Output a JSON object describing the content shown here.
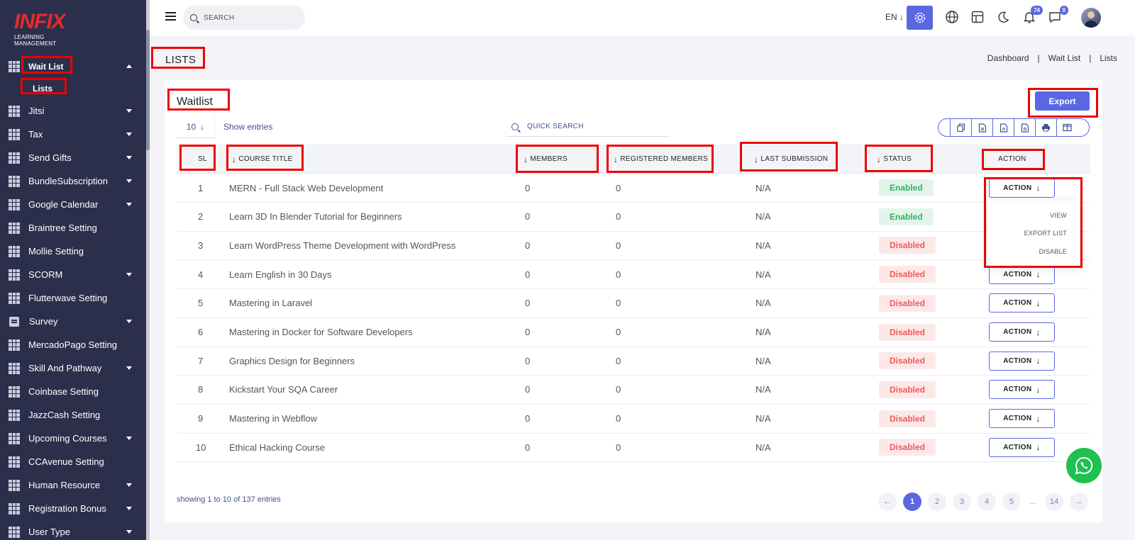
{
  "brand": {
    "logo_text": "INFIX",
    "logo_subtitle": "LEARNING MANAGEMENT"
  },
  "sidebar": {
    "items": [
      {
        "label": "Wait List",
        "expanded": true,
        "has_caret": true,
        "icon": "grid-icon"
      },
      {
        "label": "Jitsi",
        "has_caret": true,
        "icon": "grid-icon"
      },
      {
        "label": "Tax",
        "has_caret": true,
        "icon": "grid-icon"
      },
      {
        "label": "Send Gifts",
        "has_caret": true,
        "icon": "grid-icon"
      },
      {
        "label": "BundleSubscription",
        "has_caret": true,
        "icon": "grid-icon"
      },
      {
        "label": "Google Calendar",
        "has_caret": true,
        "icon": "grid-icon"
      },
      {
        "label": "Braintree Setting",
        "has_caret": false,
        "icon": "grid-icon"
      },
      {
        "label": "Mollie Setting",
        "has_caret": false,
        "icon": "grid-icon"
      },
      {
        "label": "SCORM",
        "has_caret": true,
        "icon": "grid-icon"
      },
      {
        "label": "Flutterwave Setting",
        "has_caret": false,
        "icon": "grid-icon"
      },
      {
        "label": "Survey",
        "has_caret": true,
        "icon": "survey-icon"
      },
      {
        "label": "MercadoPago Setting",
        "has_caret": false,
        "icon": "grid-icon"
      },
      {
        "label": "Skill And Pathway",
        "has_caret": true,
        "icon": "grid-icon"
      },
      {
        "label": "Coinbase Setting",
        "has_caret": false,
        "icon": "grid-icon"
      },
      {
        "label": "JazzCash Setting",
        "has_caret": false,
        "icon": "grid-icon"
      },
      {
        "label": "Upcoming Courses",
        "has_caret": true,
        "icon": "grid-icon"
      },
      {
        "label": "CCAvenue Setting",
        "has_caret": false,
        "icon": "grid-icon"
      },
      {
        "label": "Human Resource",
        "has_caret": true,
        "icon": "grid-icon"
      },
      {
        "label": "Registration Bonus",
        "has_caret": true,
        "icon": "grid-icon"
      },
      {
        "label": "User Type",
        "has_caret": true,
        "icon": "grid-icon"
      }
    ],
    "subitem": "Lists"
  },
  "topbar": {
    "search_placeholder": "SEARCH",
    "language": "EN",
    "notifications_count": "74",
    "messages_count": "0",
    "accent": "#5a67e2"
  },
  "header": {
    "page_title": "LISTS",
    "breadcrumbs": [
      "Dashboard",
      "Wait List",
      "Lists"
    ]
  },
  "card": {
    "title": "Waitlist",
    "export_label": "Export",
    "entries_value": "10",
    "entries_label": "Show entries",
    "quick_search_placeholder": "QUICK SEARCH",
    "tools": [
      "copy-icon",
      "excel-icon",
      "csv-icon",
      "pdf-icon",
      "print-icon",
      "columns-icon"
    ]
  },
  "table": {
    "columns": {
      "sl": "SL",
      "course_title": "COURSE TITLE",
      "members": "MEMBERS",
      "registered_members": "REGISTERED MEMBERS",
      "last_submission": "LAST SUBMISSION",
      "status": "STATUS",
      "action": "ACTION"
    },
    "rows": [
      {
        "sl": "1",
        "title": "MERN - Full Stack Web Development",
        "members": "0",
        "registered": "0",
        "last": "N/A",
        "status": "Enabled",
        "action": "ACTION"
      },
      {
        "sl": "2",
        "title": "Learn 3D In Blender Tutorial for Beginners",
        "members": "0",
        "registered": "0",
        "last": "N/A",
        "status": "Enabled",
        "action": "ACTION"
      },
      {
        "sl": "3",
        "title": "Learn WordPress Theme Development with WordPress",
        "members": "0",
        "registered": "0",
        "last": "N/A",
        "status": "Disabled",
        "action": "ACTION"
      },
      {
        "sl": "4",
        "title": "Learn English in 30 Days",
        "members": "0",
        "registered": "0",
        "last": "N/A",
        "status": "Disabled",
        "action": "ACTION"
      },
      {
        "sl": "5",
        "title": "Mastering in Laravel",
        "members": "0",
        "registered": "0",
        "last": "N/A",
        "status": "Disabled",
        "action": "ACTION"
      },
      {
        "sl": "6",
        "title": "Mastering in Docker for Software Developers",
        "members": "0",
        "registered": "0",
        "last": "N/A",
        "status": "Disabled",
        "action": "ACTION"
      },
      {
        "sl": "7",
        "title": "Graphics Design for Beginners",
        "members": "0",
        "registered": "0",
        "last": "N/A",
        "status": "Disabled",
        "action": "ACTION"
      },
      {
        "sl": "8",
        "title": "Kickstart Your SQA Career",
        "members": "0",
        "registered": "0",
        "last": "N/A",
        "status": "Disabled",
        "action": "ACTION"
      },
      {
        "sl": "9",
        "title": "Mastering in Webflow",
        "members": "0",
        "registered": "0",
        "last": "N/A",
        "status": "Disabled",
        "action": "ACTION"
      },
      {
        "sl": "10",
        "title": "Ethical Hacking Course",
        "members": "0",
        "registered": "0",
        "last": "N/A",
        "status": "Disabled",
        "action": "ACTION"
      }
    ],
    "dropdown": [
      "VIEW",
      "EXPORT LIST",
      "DISABLE"
    ]
  },
  "footer": {
    "info": "showing 1 to 10 of 137 entries",
    "pages": [
      "1",
      "2",
      "3",
      "4",
      "5",
      "...",
      "14"
    ]
  }
}
